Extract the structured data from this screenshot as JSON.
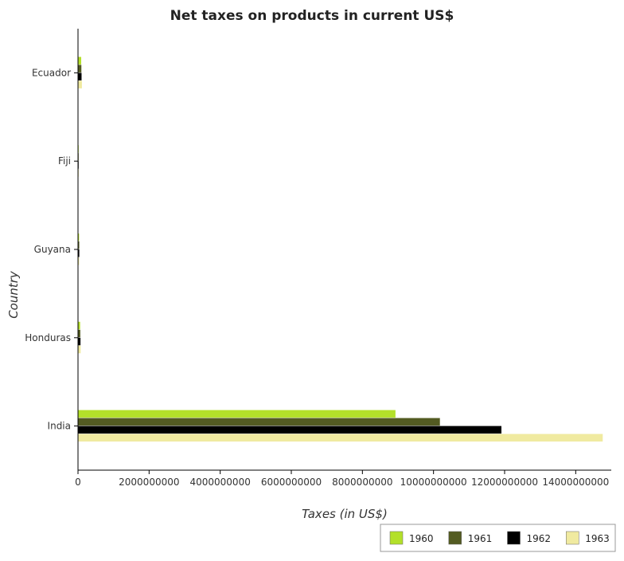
{
  "chart_data": {
    "type": "bar",
    "orientation": "horizontal",
    "title": "Net taxes on products in current US$",
    "xlabel": "Taxes (in US$)",
    "ylabel": "Country",
    "xlim": [
      0,
      15000000000
    ],
    "xticks": [
      0,
      2000000000,
      4000000000,
      6000000000,
      8000000000,
      10000000000,
      12000000000,
      14000000000
    ],
    "xtick_labels": [
      "0",
      "2000000000",
      "4000000000",
      "6000000000",
      "8000000000",
      "10000000000",
      "12000000000",
      "14000000000"
    ],
    "categories": [
      "Ecuador",
      "Fiji",
      "Guyana",
      "Honduras",
      "India"
    ],
    "series": [
      {
        "name": "1960",
        "color": "#b3e02a",
        "values": [
          90000000,
          10000000,
          30000000,
          60000000,
          8930000000
        ]
      },
      {
        "name": "1961",
        "color": "#535b22",
        "values": [
          95000000,
          11000000,
          35000000,
          65000000,
          10180000000
        ]
      },
      {
        "name": "1962",
        "color": "#000000",
        "values": [
          100000000,
          12000000,
          36000000,
          70000000,
          11910000000
        ]
      },
      {
        "name": "1963",
        "color": "#f0eaa0",
        "values": [
          110000000,
          13000000,
          30000000,
          75000000,
          14760000000
        ]
      }
    ],
    "grid": false,
    "legend": "bottom-right"
  }
}
